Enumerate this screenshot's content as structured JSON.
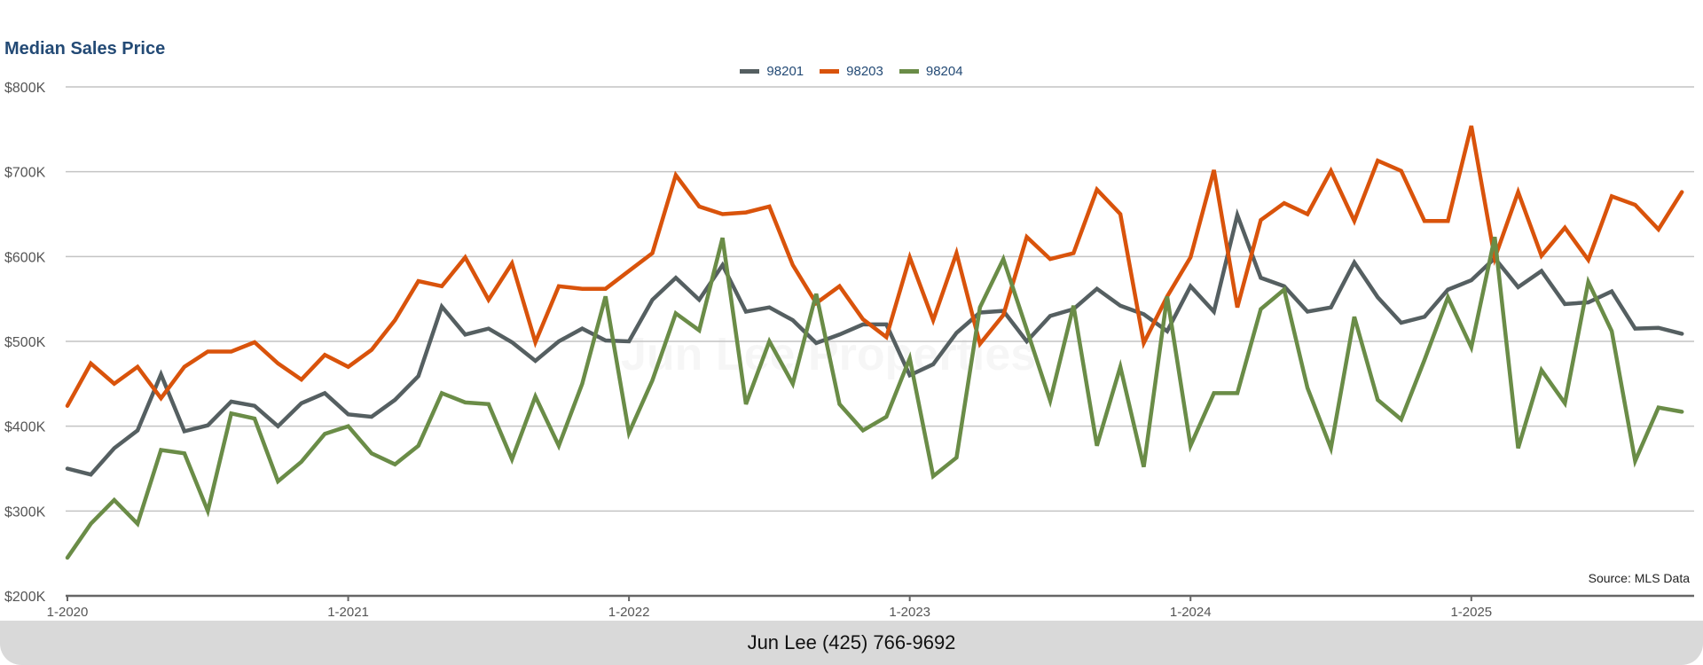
{
  "chart_data": {
    "type": "line",
    "title": "Median Sales Price",
    "xlabel": "",
    "ylabel": "",
    "ylim": [
      200000,
      800000
    ],
    "y_ticks": [
      {
        "value": 200000,
        "label": "$200K"
      },
      {
        "value": 300000,
        "label": "$300K"
      },
      {
        "value": 400000,
        "label": "$400K"
      },
      {
        "value": 500000,
        "label": "$500K"
      },
      {
        "value": 600000,
        "label": "$600K"
      },
      {
        "value": 700000,
        "label": "$700K"
      },
      {
        "value": 800000,
        "label": "$800K"
      }
    ],
    "x_start": "2020-01",
    "x_end": "2025-10",
    "x_ticks": [
      {
        "index": 0,
        "label": "1-2020"
      },
      {
        "index": 12,
        "label": "1-2021"
      },
      {
        "index": 24,
        "label": "1-2022"
      },
      {
        "index": 36,
        "label": "1-2023"
      },
      {
        "index": 48,
        "label": "1-2024"
      },
      {
        "index": 60,
        "label": "1-2025"
      }
    ],
    "grid": true,
    "legend_position": "top-center",
    "series": [
      {
        "name": "98201",
        "color": "#555f61",
        "values_k": [
          350,
          343,
          374,
          395,
          461,
          394,
          401,
          429,
          424,
          400,
          427,
          439,
          414,
          411,
          431,
          459,
          541,
          508,
          515,
          499,
          477,
          500,
          515,
          501,
          500,
          549,
          575,
          549,
          590,
          535,
          540,
          525,
          498,
          508,
          520,
          520,
          460,
          473,
          510,
          534,
          536,
          500,
          530,
          538,
          562,
          542,
          532,
          512,
          565,
          535,
          649,
          575,
          565,
          535,
          540,
          593,
          552,
          522,
          529,
          561,
          572,
          598,
          564,
          583,
          544,
          546,
          559,
          515,
          516,
          509
        ]
      },
      {
        "name": "98203",
        "color": "#d9530b",
        "values_k": [
          424,
          474,
          450,
          470,
          433,
          470,
          488,
          488,
          499,
          474,
          455,
          484,
          470,
          490,
          525,
          571,
          565,
          599,
          549,
          592,
          499,
          565,
          562,
          562,
          583,
          604,
          696,
          659,
          650,
          652,
          659,
          590,
          545,
          565,
          526,
          505,
          599,
          525,
          604,
          497,
          531,
          623,
          597,
          604,
          679,
          650,
          498,
          553,
          599,
          702,
          540,
          643,
          663,
          650,
          701,
          642,
          713,
          701,
          642,
          642,
          754,
          598,
          676,
          601,
          634,
          596,
          671,
          661,
          632,
          676
        ]
      },
      {
        "name": "98204",
        "color": "#6a8c47",
        "values_k": [
          245,
          285,
          313,
          285,
          372,
          368,
          300,
          415,
          409,
          335,
          358,
          391,
          400,
          368,
          355,
          377,
          439,
          428,
          426,
          361,
          435,
          377,
          450,
          553,
          392,
          454,
          533,
          513,
          622,
          426,
          500,
          450,
          556,
          426,
          395,
          411,
          480,
          341,
          363,
          540,
          597,
          514,
          430,
          542,
          377,
          470,
          352,
          553,
          377,
          439,
          439,
          538,
          561,
          445,
          374,
          529,
          431,
          408,
          478,
          552,
          493,
          623,
          374,
          466,
          427,
          570,
          512,
          359,
          422,
          417
        ]
      }
    ],
    "source": "Source: MLS Data"
  },
  "watermark": "Jun Lee Properties",
  "footer": "Jun Lee (425) 766-9692"
}
